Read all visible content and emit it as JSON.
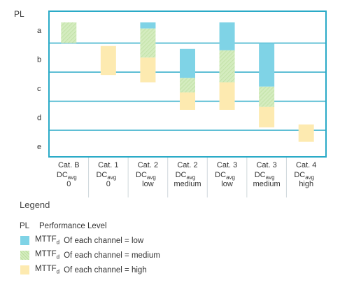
{
  "chart_data": {
    "type": "bar",
    "ylabel": "PL",
    "y_levels": [
      "a",
      "b",
      "c",
      "d",
      "e"
    ],
    "categories": [
      {
        "cat": "Cat. B",
        "dc": "DC",
        "dc_sub": "avg",
        "dc_level": "0"
      },
      {
        "cat": "Cat. 1",
        "dc": "DC",
        "dc_sub": "avg",
        "dc_level": "0"
      },
      {
        "cat": "Cat. 2",
        "dc": "DC",
        "dc_sub": "avg",
        "dc_level": "low"
      },
      {
        "cat": "Cat. 2",
        "dc": "DC",
        "dc_sub": "avg",
        "dc_level": "medium"
      },
      {
        "cat": "Cat. 3",
        "dc": "DC",
        "dc_sub": "avg",
        "dc_level": "low"
      },
      {
        "cat": "Cat. 3",
        "dc": "DC",
        "dc_sub": "avg",
        "dc_level": "medium"
      },
      {
        "cat": "Cat. 4",
        "dc": "DC",
        "dc_sub": "avg",
        "dc_level": "high"
      }
    ],
    "scale_note": "y value 0.0 = top of level a, 5.0 = bottom of level e; boundaries a/b=1, b/c=2, c/d=3, d/e=4",
    "series": [
      {
        "name": "MTTFd low",
        "color": "#7fd3e6",
        "ranges": [
          [
            -0.5,
            0.1
          ],
          null,
          [
            -0.3,
            0.5
          ],
          [
            1.2,
            2.2
          ],
          [
            -0.2,
            1.25
          ],
          [
            1.0,
            2.5
          ],
          null
        ]
      },
      {
        "name": "MTTFd medium",
        "color": "#cde8b5",
        "ranges": [
          [
            0.1,
            1.0
          ],
          null,
          [
            0.5,
            1.5
          ],
          [
            2.2,
            2.7
          ],
          [
            1.25,
            2.35
          ],
          [
            2.5,
            3.2
          ],
          null
        ]
      },
      {
        "name": "MTTFd high",
        "color": "#fdeab0",
        "ranges": [
          null,
          [
            1.1,
            2.1
          ],
          [
            1.5,
            2.35
          ],
          [
            2.7,
            3.3
          ],
          [
            2.35,
            3.3
          ],
          [
            3.2,
            3.9
          ],
          [
            3.8,
            4.4
          ]
        ]
      }
    ],
    "colors": {
      "frame": "#2aaac7",
      "grid": "#2aaac7",
      "low": "#7fd3e6",
      "medium": "#cde8b5",
      "high": "#fdeab0"
    }
  },
  "legend": {
    "title": "Legend",
    "pl_key": "PL",
    "pl_text": "Performance Level",
    "items": [
      {
        "color": "#7fd3e6",
        "mttf": "MTTF",
        "mttf_sub": "d",
        "text": "Of each channel = low"
      },
      {
        "color": "#cde8b5",
        "mttf": "MTTF",
        "mttf_sub": "d",
        "text": "Of each channel = medium"
      },
      {
        "color": "#fdeab0",
        "mttf": "MTTF",
        "mttf_sub": "d",
        "text": "Of each channel = high"
      }
    ]
  }
}
